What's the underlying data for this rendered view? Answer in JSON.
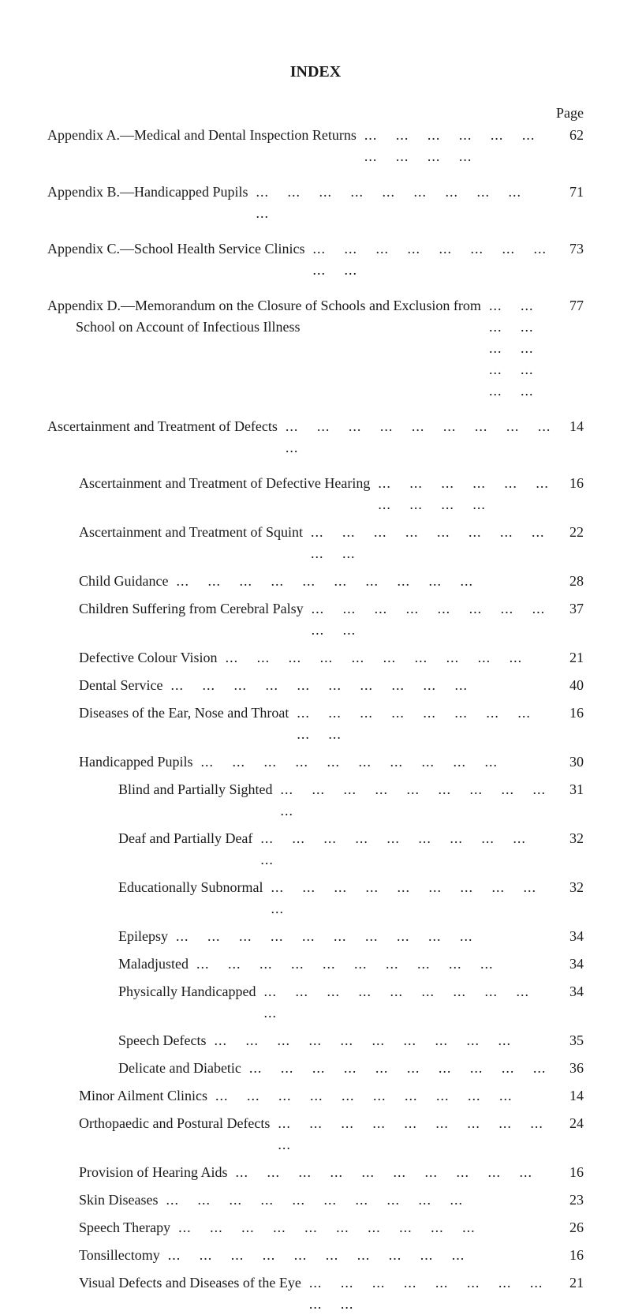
{
  "title": "INDEX",
  "page_header": "Page",
  "entries": [
    {
      "label": "Appendix A.—Medical and Dental Inspection Returns",
      "page": "62",
      "indent": 0
    },
    {
      "label": "Appendix B.—Handicapped Pupils",
      "page": "71",
      "indent": 0
    },
    {
      "label": "Appendix C.—School Health Service Clinics",
      "page": "73",
      "indent": 0
    },
    {
      "label": "Appendix D.—Memorandum on the Closure of Schools and Exclusion from\n        School on Account of Infectious Illness",
      "page": "77",
      "indent": 0
    },
    {
      "label": "Ascertainment and Treatment of Defects",
      "page": "14",
      "indent": 0
    },
    {
      "label": "Ascertainment and Treatment of Defective Hearing",
      "page": "16",
      "indent": 1
    },
    {
      "label": "Ascertainment and Treatment of Squint",
      "page": "22",
      "indent": 1
    },
    {
      "label": "Child Guidance",
      "page": "28",
      "indent": 1
    },
    {
      "label": "Children Suffering from Cerebral Palsy",
      "page": "37",
      "indent": 1
    },
    {
      "label": "Defective Colour Vision",
      "page": "21",
      "indent": 1
    },
    {
      "label": "Dental Service",
      "page": "40",
      "indent": 1
    },
    {
      "label": "Diseases of the Ear, Nose and Throat",
      "page": "16",
      "indent": 1
    },
    {
      "label": "Handicapped Pupils",
      "page": "30",
      "indent": 1
    },
    {
      "label": "Blind and Partially Sighted",
      "page": "31",
      "indent": 2
    },
    {
      "label": "Deaf and Partially Deaf",
      "page": "32",
      "indent": 2
    },
    {
      "label": "Educationally Subnormal",
      "page": "32",
      "indent": 2
    },
    {
      "label": "Epilepsy",
      "page": "34",
      "indent": 2
    },
    {
      "label": "Maladjusted",
      "page": "34",
      "indent": 2
    },
    {
      "label": "Physically Handicapped",
      "page": "34",
      "indent": 2
    },
    {
      "label": "Speech Defects",
      "page": "35",
      "indent": 2
    },
    {
      "label": "Delicate and Diabetic",
      "page": "36",
      "indent": 2
    },
    {
      "label": "Minor Ailment Clinics",
      "page": "14",
      "indent": 1
    },
    {
      "label": "Orthopaedic and Postural Defects",
      "page": "24",
      "indent": 1
    },
    {
      "label": "Provision of Hearing Aids",
      "page": "16",
      "indent": 1
    },
    {
      "label": "Skin Diseases",
      "page": "23",
      "indent": 1
    },
    {
      "label": "Speech Therapy",
      "page": "26",
      "indent": 1
    },
    {
      "label": "Tonsillectomy",
      "page": "16",
      "indent": 1
    },
    {
      "label": "Visual Defects and Diseases of the Eye",
      "page": "21",
      "indent": 1
    }
  ],
  "spacers_after": [
    0,
    1,
    2,
    3,
    4
  ]
}
